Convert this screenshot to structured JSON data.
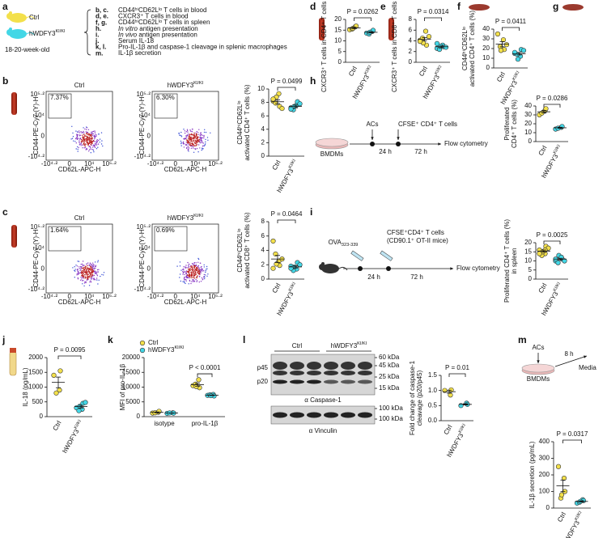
{
  "a": {
    "letter": "a",
    "ctrl": "Ctrl",
    "ki": {
      "text": "hWDFY3",
      "sup": "KI/KI"
    },
    "age": "18-20-week-old",
    "items": [
      {
        "key": "b, c.",
        "text": "CD44ʰⁱCD62Lˡᵒ T cells in blood"
      },
      {
        "key": "d, e.",
        "text": "CXCR3⁺ T cells in blood"
      },
      {
        "key": "f, g.",
        "text": "CD44ʰⁱCD62Lˡᵒ T cells in spleen"
      },
      {
        "key": "h.",
        "em": "In vitro",
        "text": " antigen presentation"
      },
      {
        "key": "i.",
        "em": "In vivo",
        "text": " antigen presentation"
      },
      {
        "key": "j.",
        "text": "Serum IL-18"
      },
      {
        "key": "k, l.",
        "text": "Pro-IL-1β and caspase-1 cleavage in splenic macrophages"
      },
      {
        "key": "m.",
        "text": "IL-1β secretion"
      }
    ]
  },
  "flow_axes": {
    "ylabel": "CD44-PE-Cy7 (Y)-H",
    "xlabel": "CD62L-APC-H",
    "ticks": [
      "-10⁴·²",
      "0",
      "10⁴",
      "10⁵·²"
    ]
  },
  "b": {
    "letter": "b",
    "flow": [
      {
        "title": "Ctrl",
        "gate": "7.37%"
      },
      {
        "title": {
          "text": "hWDFY3",
          "sup": "KI/KI"
        },
        "gate": "6.30%"
      }
    ],
    "ylabel": [
      "CD44ʰⁱCD62Lˡᵒ",
      "activated CD4⁺ T cells (%)"
    ],
    "ylim": [
      0,
      10
    ],
    "yticks": [
      0,
      2,
      4,
      6,
      8,
      10
    ],
    "p": "P = 0.0499",
    "groups": [
      {
        "name": "Ctrl",
        "color": "#f3e04b",
        "values": [
          8.2,
          9.3,
          7.4,
          7.9,
          8.8,
          7.1,
          8.5
        ],
        "mean": 8.1,
        "sem": 0.3
      },
      {
        "name": {
          "text": "hWDFY3",
          "sup": "KI/KI"
        },
        "color": "#43d7e6",
        "values": [
          7.2,
          7.6,
          8.1,
          6.9,
          7.4,
          7.8,
          7.0
        ],
        "mean": 7.4,
        "sem": 0.2
      }
    ]
  },
  "c": {
    "letter": "c",
    "flow": [
      {
        "title": "Ctrl",
        "gate": "1.64%"
      },
      {
        "title": {
          "text": "hWDFY3",
          "sup": "KI/KI"
        },
        "gate": "0.69%"
      }
    ],
    "ylabel": [
      "CD44ʰⁱCD62Lˡᵒ",
      "activated CD8⁺ T cells (%)"
    ],
    "ylim": [
      0,
      8
    ],
    "yticks": [
      0,
      2,
      4,
      6,
      8
    ],
    "p": "P = 0.0464",
    "groups": [
      {
        "name": "Ctrl",
        "color": "#f3e04b",
        "values": [
          5.3,
          2.5,
          1.9,
          3.5,
          2.1,
          2.8,
          1.5
        ],
        "mean": 2.8,
        "sem": 0.5
      },
      {
        "name": {
          "text": "hWDFY3",
          "sup": "KI/KI"
        },
        "color": "#43d7e6",
        "values": [
          1.8,
          1.4,
          2.3,
          1.2,
          1.7,
          2.0,
          1.5
        ],
        "mean": 1.7,
        "sem": 0.15
      }
    ]
  },
  "d": {
    "letter": "d",
    "ylabel": [
      "CXCR3⁺ T cells in CD4⁺ T cells (%)"
    ],
    "ylim": [
      0,
      20
    ],
    "yticks": [
      0,
      5,
      10,
      15,
      20
    ],
    "p": "P = 0.0262",
    "groups": [
      {
        "name": "Ctrl",
        "color": "#f3e04b",
        "values": [
          15.2,
          16.6,
          16.9,
          15.5,
          15.8
        ],
        "mean": 16.0,
        "sem": 0.4
      },
      {
        "name": {
          "text": "hWDFY3",
          "sup": "KI/KI"
        },
        "color": "#43d7e6",
        "values": [
          13.6,
          14.4,
          14.9,
          13.2,
          14.0
        ],
        "mean": 14.0,
        "sem": 0.3
      }
    ]
  },
  "e": {
    "letter": "e",
    "ylabel": [
      "CXCR3⁺ T cells in CD8⁺ T cells (%)"
    ],
    "ylim": [
      0,
      8
    ],
    "yticks": [
      0,
      2,
      4,
      6,
      8
    ],
    "p": "P = 0.0314",
    "groups": [
      {
        "name": "Ctrl",
        "color": "#f3e04b",
        "values": [
          4.1,
          5.8,
          3.2,
          4.5,
          3.6,
          4.8,
          3.9
        ],
        "mean": 4.3,
        "sem": 0.3
      },
      {
        "name": {
          "text": "hWDFY3",
          "sup": "KI/KI"
        },
        "color": "#43d7e6",
        "values": [
          2.6,
          3.2,
          2.9,
          2.4,
          3.0,
          2.8,
          3.5
        ],
        "mean": 2.9,
        "sem": 0.15
      }
    ]
  },
  "f": {
    "letter": "f",
    "ylabel": [
      "CD44ʰⁱCD62Lˡᵒ",
      "activated CD4⁺ T cells (%)"
    ],
    "ylim": [
      0,
      40
    ],
    "yticks": [
      0,
      10,
      20,
      30,
      40
    ],
    "p": "P = 0.0411",
    "groups": [
      {
        "name": "Ctrl",
        "color": "#f3e04b",
        "values": [
          35,
          29,
          19,
          22,
          18,
          24
        ],
        "mean": 24.5,
        "sem": 2.7
      },
      {
        "name": {
          "text": "hWDFY3",
          "sup": "KI/KI"
        },
        "color": "#43d7e6",
        "values": [
          15,
          12,
          19,
          14,
          9,
          18,
          16
        ],
        "mean": 14.7,
        "sem": 1.3
      }
    ]
  },
  "g": {
    "letter": "g"
  },
  "h": {
    "letter": "h",
    "diagram": {
      "acs": "ACs",
      "cells": "CFSE⁺ CD4⁺ T cells",
      "dish": "BMDMs",
      "t1": "24 h",
      "t2": "72 h",
      "end": "Flow cytometry"
    },
    "ylabel": [
      "Proliferated",
      "CD4⁺ T cells (%)"
    ],
    "ylim": [
      0,
      40
    ],
    "yticks": [
      0,
      10,
      20,
      30,
      40
    ],
    "p": "P = 0.0286",
    "groups": [
      {
        "name": "Ctrl",
        "color": "#f3e04b",
        "values": [
          30,
          35,
          37,
          32
        ],
        "mean": 33.5,
        "sem": 1.5
      },
      {
        "name": {
          "text": "hWDFY3",
          "sup": "KI/KI"
        },
        "color": "#43d7e6",
        "values": [
          14,
          16,
          17,
          15
        ],
        "mean": 15.5,
        "sem": 0.6
      }
    ]
  },
  "i": {
    "letter": "i",
    "diagram": {
      "ova": {
        "text": "OVA",
        "sub": "323-339"
      },
      "cells": "CFSE⁺CD4⁺ T cells",
      "cells2": "(CD90.1⁺ OT-II mice)",
      "t1": "24 h",
      "t2": "72 h",
      "end": "Flow cytometry"
    },
    "ylabel": [
      "Proliferated CD4⁺ T cells (%)",
      "in spleen"
    ],
    "ylim": [
      0,
      20
    ],
    "yticks": [
      0,
      5,
      10,
      15,
      20
    ],
    "p": "P = 0.0025",
    "groups": [
      {
        "name": "Ctrl",
        "color": "#f3e04b",
        "values": [
          16,
          14,
          18,
          13,
          15,
          17,
          14,
          16
        ],
        "mean": 15.4,
        "sem": 0.6
      },
      {
        "name": {
          "text": "hWDFY3",
          "sup": "KI/KI"
        },
        "color": "#43d7e6",
        "values": [
          10,
          12,
          11,
          9,
          13,
          10,
          11,
          12
        ],
        "mean": 11,
        "sem": 0.45
      }
    ]
  },
  "j": {
    "letter": "j",
    "ylabel": [
      "IL-18 (pg/mL)"
    ],
    "ylim": [
      0,
      2000
    ],
    "yticks": [
      0,
      500,
      1000,
      1500,
      2000
    ],
    "p": "P = 0.0095",
    "groups": [
      {
        "name": "Ctrl",
        "color": "#f3e04b",
        "values": [
          1400,
          900,
          1550,
          800
        ],
        "mean": 1160,
        "sem": 180
      },
      {
        "name": {
          "text": "hWDFY3",
          "sup": "KI/KI"
        },
        "color": "#43d7e6",
        "values": [
          300,
          250,
          450,
          200,
          350,
          480
        ],
        "mean": 340,
        "sem": 45
      }
    ]
  },
  "k": {
    "letter": "k",
    "ylabel": [
      "MFI of pro-IL-1β"
    ],
    "ylim": [
      0,
      20000
    ],
    "yticks": [
      0,
      5000,
      10000,
      15000,
      20000
    ],
    "p": "P < 0.0001",
    "categories": [
      "isotype",
      "pro-IL-1β"
    ],
    "series": [
      {
        "name": "Ctrl",
        "color": "#f3e04b",
        "values": [
          [
            1200,
            1500,
            1800,
            1300
          ],
          [
            10500,
            12500,
            9800,
            11000,
            10200
          ]
        ],
        "mean": [
          1450,
          10800
        ],
        "sem": [
          130,
          480
        ]
      },
      {
        "name": {
          "text": "hWDFY3",
          "sup": "KI/KI"
        },
        "color": "#43d7e6",
        "values": [
          [
            1100,
            1300,
            1200,
            1250
          ],
          [
            7200,
            7500,
            7000,
            7400,
            7100
          ]
        ],
        "mean": [
          1210,
          7240
        ],
        "sem": [
          45,
          90
        ]
      }
    ]
  },
  "l": {
    "letter": "l",
    "blot": {
      "ctrl": "Ctrl",
      "ki": {
        "text": "hWDFY3",
        "sup": "KI/KI"
      },
      "p45": "p45",
      "p20": "p20",
      "markers": [
        "60 kDa",
        "45 kDa",
        "25 kDa",
        "15 kDa"
      ],
      "caspase": "α Caspase-1",
      "vmarkers": [
        "100 kDa",
        "100 kDa"
      ],
      "vinculin": "α Vinculin"
    },
    "ylabel": [
      "Fold change of caspase-1",
      "cleavage (p20/p45)"
    ],
    "ylim": [
      0,
      1.5
    ],
    "yticks": [
      {
        "value": 0,
        "label": "0.0"
      },
      0.5,
      {
        "value": 1,
        "label": "1.0"
      },
      1.5
    ],
    "p": "P = 0.01",
    "groups": [
      {
        "name": "Ctrl",
        "color": "#f3e04b",
        "values": [
          1.0,
          0.85,
          1.02
        ],
        "mean": 0.96,
        "sem": 0.05
      },
      {
        "name": {
          "text": "hWDFY3",
          "sup": "KI/KI"
        },
        "color": "#43d7e6",
        "values": [
          0.5,
          0.58,
          0.54
        ],
        "mean": 0.54,
        "sem": 0.02
      }
    ]
  },
  "m": {
    "letter": "m",
    "diagram": {
      "acs": "ACs",
      "t": "8 h",
      "dish": "BMDMs",
      "end": "Media"
    },
    "ylabel": [
      "IL-1β secretion (pg/mL)"
    ],
    "ylim": [
      0,
      400
    ],
    "yticks": [
      0,
      100,
      200,
      300,
      400
    ],
    "p": "P = 0.0317",
    "groups": [
      {
        "name": "Ctrl",
        "color": "#f3e04b",
        "values": [
          250,
          180,
          100,
          60,
          80
        ],
        "mean": 134,
        "sem": 35
      },
      {
        "name": {
          "text": "hWDFY3",
          "sup": "KI/KI"
        },
        "color": "#43d7e6",
        "values": [
          30,
          50,
          45,
          35,
          40
        ],
        "mean": 40,
        "sem": 4
      }
    ]
  }
}
